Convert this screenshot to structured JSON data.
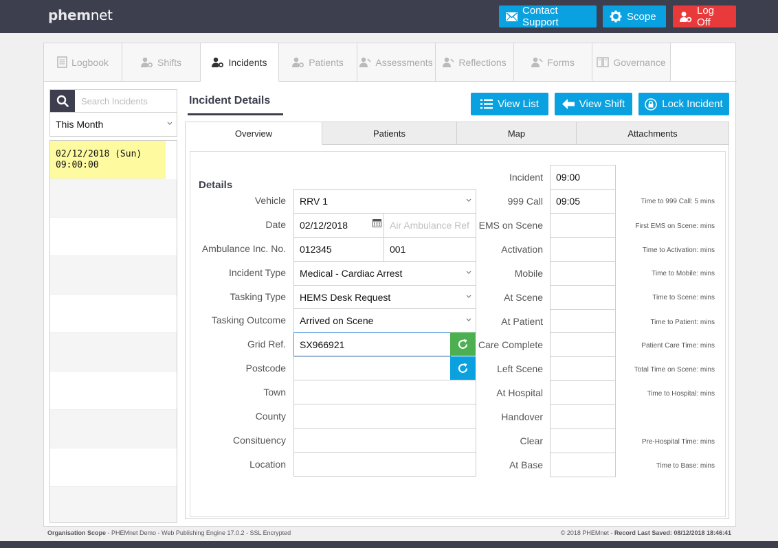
{
  "app": {
    "logo_bold": "phem",
    "logo_rest": "net"
  },
  "header": {
    "contact_support": "Contact Support",
    "scope": "Scope",
    "log_off": "Log Off"
  },
  "nav": {
    "tabs": [
      {
        "label": "Logbook",
        "icon": "book-icon"
      },
      {
        "label": "Shifts",
        "icon": "users-gear-icon"
      },
      {
        "label": "Incidents",
        "icon": "users-gear-icon"
      },
      {
        "label": "Patients",
        "icon": "users-gear-icon"
      },
      {
        "label": "Assessments",
        "icon": "stethoscope-icon"
      },
      {
        "label": "Reflections",
        "icon": "stethoscope-icon"
      },
      {
        "label": "Forms",
        "icon": "stethoscope-icon"
      },
      {
        "label": "Governance",
        "icon": "clone-icon"
      }
    ],
    "active": "Incidents"
  },
  "sidebar": {
    "search_placeholder": "Search Incidents",
    "filter": "This Month",
    "incidents": [
      {
        "date": "02/12/2018 (Sun)",
        "time": "09:00:00"
      }
    ]
  },
  "main": {
    "title": "Incident Details",
    "view_list": "View List",
    "view_shift": "View Shift",
    "lock_incident": "Lock Incident",
    "tabs": [
      "Overview",
      "Patients",
      "Map",
      "Attachments"
    ],
    "active_tab": "Overview"
  },
  "details": {
    "heading": "Details",
    "labels": {
      "vehicle": "Vehicle",
      "date": "Date",
      "ambulance_no": "Ambulance Inc. No.",
      "incident_type": "Incident Type",
      "tasking_type": "Tasking Type",
      "tasking_outcome": "Tasking Outcome",
      "grid_ref": "Grid Ref.",
      "postcode": "Postcode",
      "town": "Town",
      "county": "County",
      "consituency": "Consituency",
      "location": "Location"
    },
    "values": {
      "vehicle": "RRV 1",
      "date": "02/12/2018",
      "air_ambulance_ref_placeholder": "Air Ambulance Ref",
      "ambulance_no": "012345",
      "ambulance_no_suffix": "001",
      "incident_type": "Medical - Cardiac Arrest",
      "tasking_type": "HEMS Desk Request",
      "tasking_outcome": "Arrived on Scene",
      "grid_ref": "SX966921",
      "postcode": "",
      "town": "",
      "county": "",
      "consituency": "",
      "location": ""
    }
  },
  "times": [
    {
      "label": "Incident",
      "value": "09:00",
      "note": ""
    },
    {
      "label": "999 Call",
      "value": "09:05",
      "note": "Time to 999 Call: 5 mins"
    },
    {
      "label": "EMS on Scene",
      "value": "",
      "note": "First EMS on Scene:  mins"
    },
    {
      "label": "Activation",
      "value": "",
      "note": "Time to Activation:  mins"
    },
    {
      "label": "Mobile",
      "value": "",
      "note": "Time to Mobile:  mins"
    },
    {
      "label": "At Scene",
      "value": "",
      "note": "Time to Scene:  mins"
    },
    {
      "label": "At Patient",
      "value": "",
      "note": "Time to Patient:  mins"
    },
    {
      "label": "Care Complete",
      "value": "",
      "note": "Patient Care Time:  mins"
    },
    {
      "label": "Left Scene",
      "value": "",
      "note": "Total Time on Scene:  mins"
    },
    {
      "label": "At Hospital",
      "value": "",
      "note": "Time to Hospital:  mins"
    },
    {
      "label": "Handover",
      "value": "",
      "note": ""
    },
    {
      "label": "Clear",
      "value": "",
      "note": "Pre-Hospital Time:  mins"
    },
    {
      "label": "At Base",
      "value": "",
      "note": "Time to Base:  mins"
    }
  ],
  "footer": {
    "org_label": "Organisation Scope",
    "org_text": " - PHEMnet Demo - Web Publishing Engine 17.0.2 - SSL Encrypted",
    "copyright": "© 2018 PHEMnet - ",
    "saved_label": "Record Last Saved: 08/12/2018 18:46:41"
  },
  "colors": {
    "accent": "#0aa1e0",
    "danger": "#e83a3a",
    "dark": "#3d3f4e",
    "green": "#4caf50",
    "selected_row": "#fdfaa0"
  }
}
